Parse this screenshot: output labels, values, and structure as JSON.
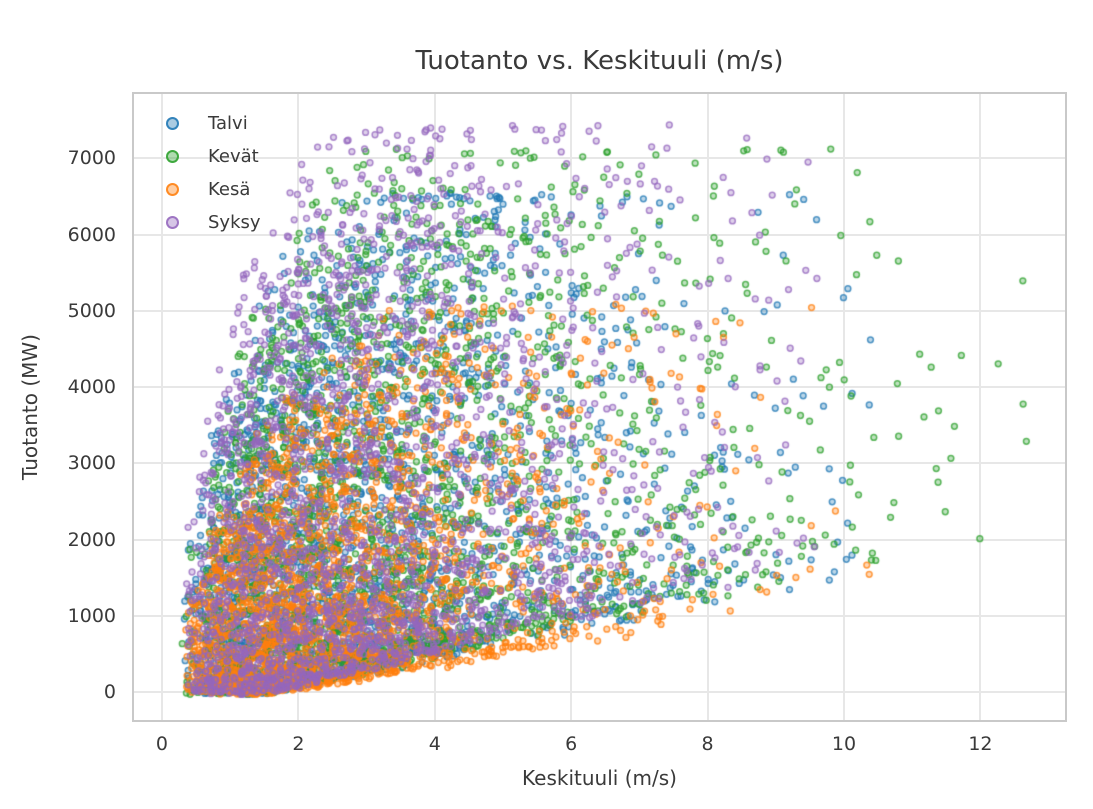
{
  "chart_data": {
    "type": "scatter",
    "title": "Tuotanto vs. Keskituuli (m/s)",
    "xlabel": "Keskituuli (m/s)",
    "ylabel": "Tuotanto (MW)",
    "xlim": [
      -0.41,
      13.24
    ],
    "ylim": [
      -364,
      7844
    ],
    "x_ticks": [
      0,
      2,
      4,
      6,
      8,
      10,
      12
    ],
    "y_ticks": [
      0,
      1000,
      2000,
      3000,
      4000,
      5000,
      6000,
      7000
    ],
    "grid": true,
    "legend_position": "upper-left",
    "style": {
      "background": "#ffffff",
      "grid_color": "#e7e7e7",
      "axes_edge_color": "#c9c9c9",
      "text_color": "#3a3a3a"
    },
    "marker": {
      "radius": 2.9,
      "fill_alpha": 0.3,
      "edge_alpha": 0.75,
      "edge_width": 1.5
    },
    "points_are_procedural_estimate": true,
    "seed": 1337,
    "series": [
      {
        "name": "Talvi",
        "color": "#1f77b4",
        "n": 2160,
        "x_min": 0.28,
        "x_max": 10.4,
        "x_theta": 1.52,
        "capacity": 6600,
        "rise": 1.15,
        "y_max": 6550
      },
      {
        "name": "Kevät",
        "color": "#2ca02c",
        "n": 2160,
        "x_min": 0.28,
        "x_max": 12.72,
        "x_theta": 1.62,
        "capacity": 7150,
        "rise": 1.3,
        "y_max": 7120
      },
      {
        "name": "Kesä",
        "color": "#ff7f0e",
        "n": 2160,
        "x_min": 0.28,
        "x_max": 10.5,
        "x_theta": 1.22,
        "capacity": 5150,
        "rise": 1.55,
        "y_max": 5080
      },
      {
        "name": "Syksy",
        "color": "#9467bd",
        "n": 2160,
        "x_min": 0.28,
        "x_max": 9.6,
        "x_theta": 1.5,
        "capacity": 7450,
        "rise": 1.1,
        "y_max": 7430
      }
    ]
  }
}
